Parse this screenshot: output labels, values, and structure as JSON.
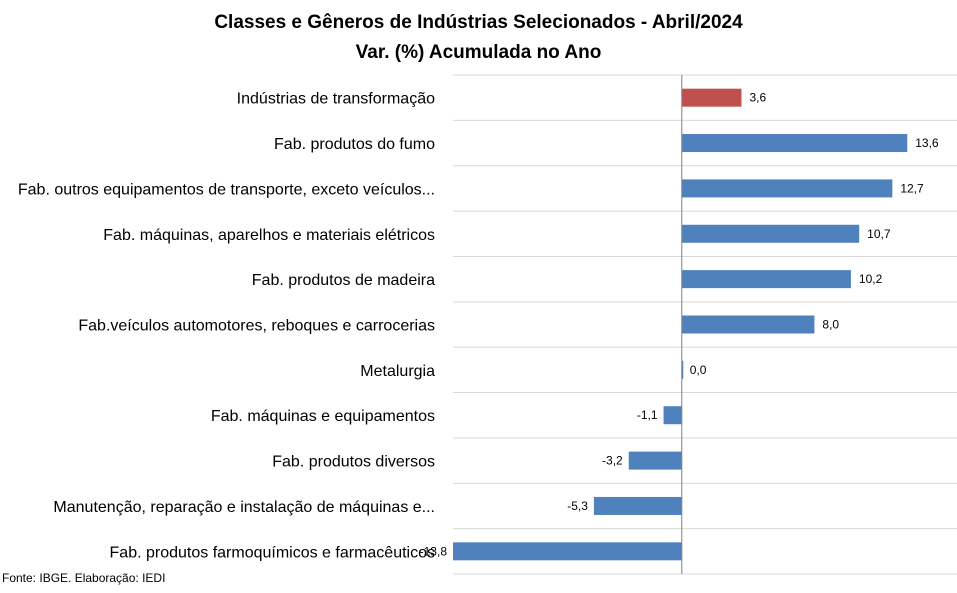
{
  "chart_data": {
    "type": "bar",
    "orientation": "horizontal",
    "title": "Classes e Gêneros de Indústrias Selecionados - Abril/2024",
    "subtitle": "Var. (%) Acumulada no Ano",
    "categories": [
      "Indústrias de transformação",
      "Fab. produtos do fumo",
      "Fab. outros equipamentos de transporte, exceto veículos...",
      "Fab. máquinas, aparelhos e materiais elétricos",
      "Fab. produtos de madeira",
      "Fab.veículos automotores, reboques e carrocerias",
      "Metalurgia",
      "Fab. máquinas e equipamentos",
      "Fab. produtos diversos",
      "Manutenção, reparação e instalação de máquinas e...",
      "Fab. produtos farmoquímicos e farmacêuticos"
    ],
    "values": [
      3.6,
      13.6,
      12.7,
      10.7,
      10.2,
      8.0,
      0.0,
      -1.1,
      -3.2,
      -5.3,
      -13.8
    ],
    "value_labels": [
      "3,6",
      "13,6",
      "12,7",
      "10,7",
      "10,2",
      "8,0",
      "0,0",
      "-1,1",
      "-3,2",
      "-5,3",
      "-13,8"
    ],
    "colors": [
      "#c0504d",
      "#4f81bd",
      "#4f81bd",
      "#4f81bd",
      "#4f81bd",
      "#4f81bd",
      "#4f81bd",
      "#4f81bd",
      "#4f81bd",
      "#4f81bd",
      "#4f81bd"
    ],
    "xlim": [
      -13.8,
      16.6
    ],
    "grid": true,
    "legend": "none"
  },
  "footer": {
    "source": "Fonte: IBGE. Elaboração: IEDI"
  }
}
